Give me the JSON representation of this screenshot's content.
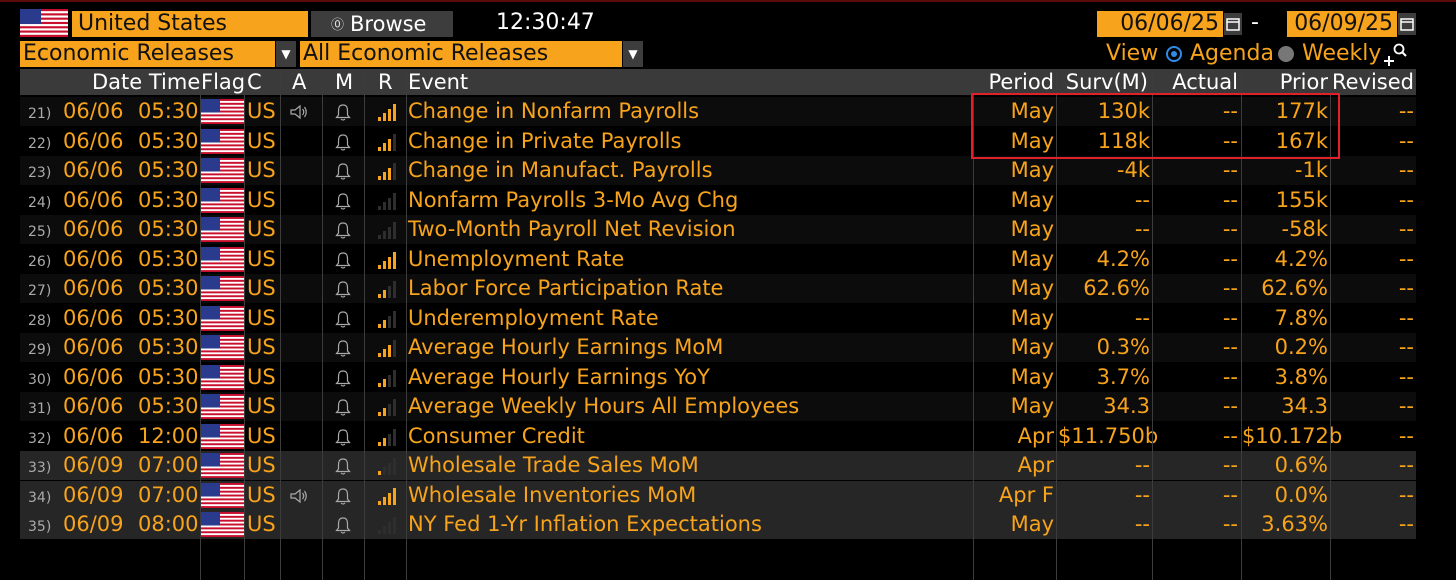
{
  "header": {
    "country": "United States",
    "browse_label": "Browse",
    "time": "12:30:47",
    "start_date": "06/06/25",
    "end_date": "06/09/25",
    "date_separator": "-",
    "category": "Economic Releases",
    "filter": "All Economic Releases",
    "view_label": "View",
    "view_options": [
      "Agenda",
      "Weekly"
    ],
    "view_selected": "Agenda"
  },
  "columns": {
    "date_time": "Date Time",
    "flag": "Flag",
    "country": "C",
    "alert_a": "A",
    "alert_m": "M",
    "relevance": "R",
    "event": "Event",
    "period": "Period",
    "survey": "Surv(M)",
    "actual": "Actual",
    "prior": "Prior",
    "revised": "Revised"
  },
  "icons": {
    "speaker": "speaker-icon",
    "bell": "bell-icon",
    "relevance": "signal-bars-icon",
    "calendar": "calendar-icon",
    "zoom": "zoom-plus-icon",
    "dropdown": "chevron-down-icon"
  },
  "colors": {
    "accent": "#f7a31b",
    "highlight_box": "#e0202a",
    "selected_radio": "#2e8ce8",
    "header_bg": "#3a3a3a",
    "next_day_bg": "#262626"
  },
  "rows": [
    {
      "num": "21)",
      "date": "06/06",
      "time": "05:30",
      "country": "US",
      "audio": true,
      "relevance": 4,
      "event": "Change in Nonfarm Payrolls",
      "period": "May",
      "survey": "130k",
      "actual": "--",
      "prior": "177k",
      "revised": "--"
    },
    {
      "num": "22)",
      "date": "06/06",
      "time": "05:30",
      "country": "US",
      "audio": false,
      "relevance": 3,
      "event": "Change in Private Payrolls",
      "period": "May",
      "survey": "118k",
      "actual": "--",
      "prior": "167k",
      "revised": "--"
    },
    {
      "num": "23)",
      "date": "06/06",
      "time": "05:30",
      "country": "US",
      "audio": false,
      "relevance": 3,
      "event": "Change in Manufact. Payrolls",
      "period": "May",
      "survey": "-4k",
      "actual": "--",
      "prior": "-1k",
      "revised": "--"
    },
    {
      "num": "24)",
      "date": "06/06",
      "time": "05:30",
      "country": "US",
      "audio": false,
      "relevance": 0,
      "event": "Nonfarm Payrolls 3-Mo Avg Chg",
      "period": "May",
      "survey": "--",
      "actual": "--",
      "prior": "155k",
      "revised": "--"
    },
    {
      "num": "25)",
      "date": "06/06",
      "time": "05:30",
      "country": "US",
      "audio": false,
      "relevance": 0,
      "event": "Two-Month Payroll Net Revision",
      "period": "May",
      "survey": "--",
      "actual": "--",
      "prior": "-58k",
      "revised": "--"
    },
    {
      "num": "26)",
      "date": "06/06",
      "time": "05:30",
      "country": "US",
      "audio": false,
      "relevance": 4,
      "event": "Unemployment Rate",
      "period": "May",
      "survey": "4.2%",
      "actual": "--",
      "prior": "4.2%",
      "revised": "--"
    },
    {
      "num": "27)",
      "date": "06/06",
      "time": "05:30",
      "country": "US",
      "audio": false,
      "relevance": 2,
      "event": "Labor Force Participation Rate",
      "period": "May",
      "survey": "62.6%",
      "actual": "--",
      "prior": "62.6%",
      "revised": "--"
    },
    {
      "num": "28)",
      "date": "06/06",
      "time": "05:30",
      "country": "US",
      "audio": false,
      "relevance": 2,
      "event": "Underemployment Rate",
      "period": "May",
      "survey": "--",
      "actual": "--",
      "prior": "7.8%",
      "revised": "--"
    },
    {
      "num": "29)",
      "date": "06/06",
      "time": "05:30",
      "country": "US",
      "audio": false,
      "relevance": 3,
      "event": "Average Hourly Earnings MoM",
      "period": "May",
      "survey": "0.3%",
      "actual": "--",
      "prior": "0.2%",
      "revised": "--"
    },
    {
      "num": "30)",
      "date": "06/06",
      "time": "05:30",
      "country": "US",
      "audio": false,
      "relevance": 2,
      "event": "Average Hourly Earnings YoY",
      "period": "May",
      "survey": "3.7%",
      "actual": "--",
      "prior": "3.8%",
      "revised": "--"
    },
    {
      "num": "31)",
      "date": "06/06",
      "time": "05:30",
      "country": "US",
      "audio": false,
      "relevance": 2,
      "event": "Average Weekly Hours All Employees",
      "period": "May",
      "survey": "34.3",
      "actual": "--",
      "prior": "34.3",
      "revised": "--"
    },
    {
      "num": "32)",
      "date": "06/06",
      "time": "12:00",
      "country": "US",
      "audio": false,
      "relevance": 2,
      "event": "Consumer Credit",
      "period": "Apr",
      "survey": "$11.750b",
      "actual": "--",
      "prior": "$10.172b",
      "revised": "--"
    },
    {
      "num": "33)",
      "date": "06/09",
      "time": "07:00",
      "country": "US",
      "audio": false,
      "relevance": 1,
      "event": "Wholesale Trade Sales MoM",
      "period": "Apr",
      "survey": "--",
      "actual": "--",
      "prior": "0.6%",
      "revised": "--"
    },
    {
      "num": "34)",
      "date": "06/09",
      "time": "07:00",
      "country": "US",
      "audio": true,
      "relevance": 4,
      "event": "Wholesale Inventories MoM",
      "period": "Apr F",
      "survey": "--",
      "actual": "--",
      "prior": "0.0%",
      "revised": "--"
    },
    {
      "num": "35)",
      "date": "06/09",
      "time": "08:00",
      "country": "US",
      "audio": false,
      "relevance": 0,
      "event": "NY Fed 1-Yr Inflation Expectations",
      "period": "May",
      "survey": "--",
      "actual": "--",
      "prior": "3.63%",
      "revised": "--"
    }
  ]
}
